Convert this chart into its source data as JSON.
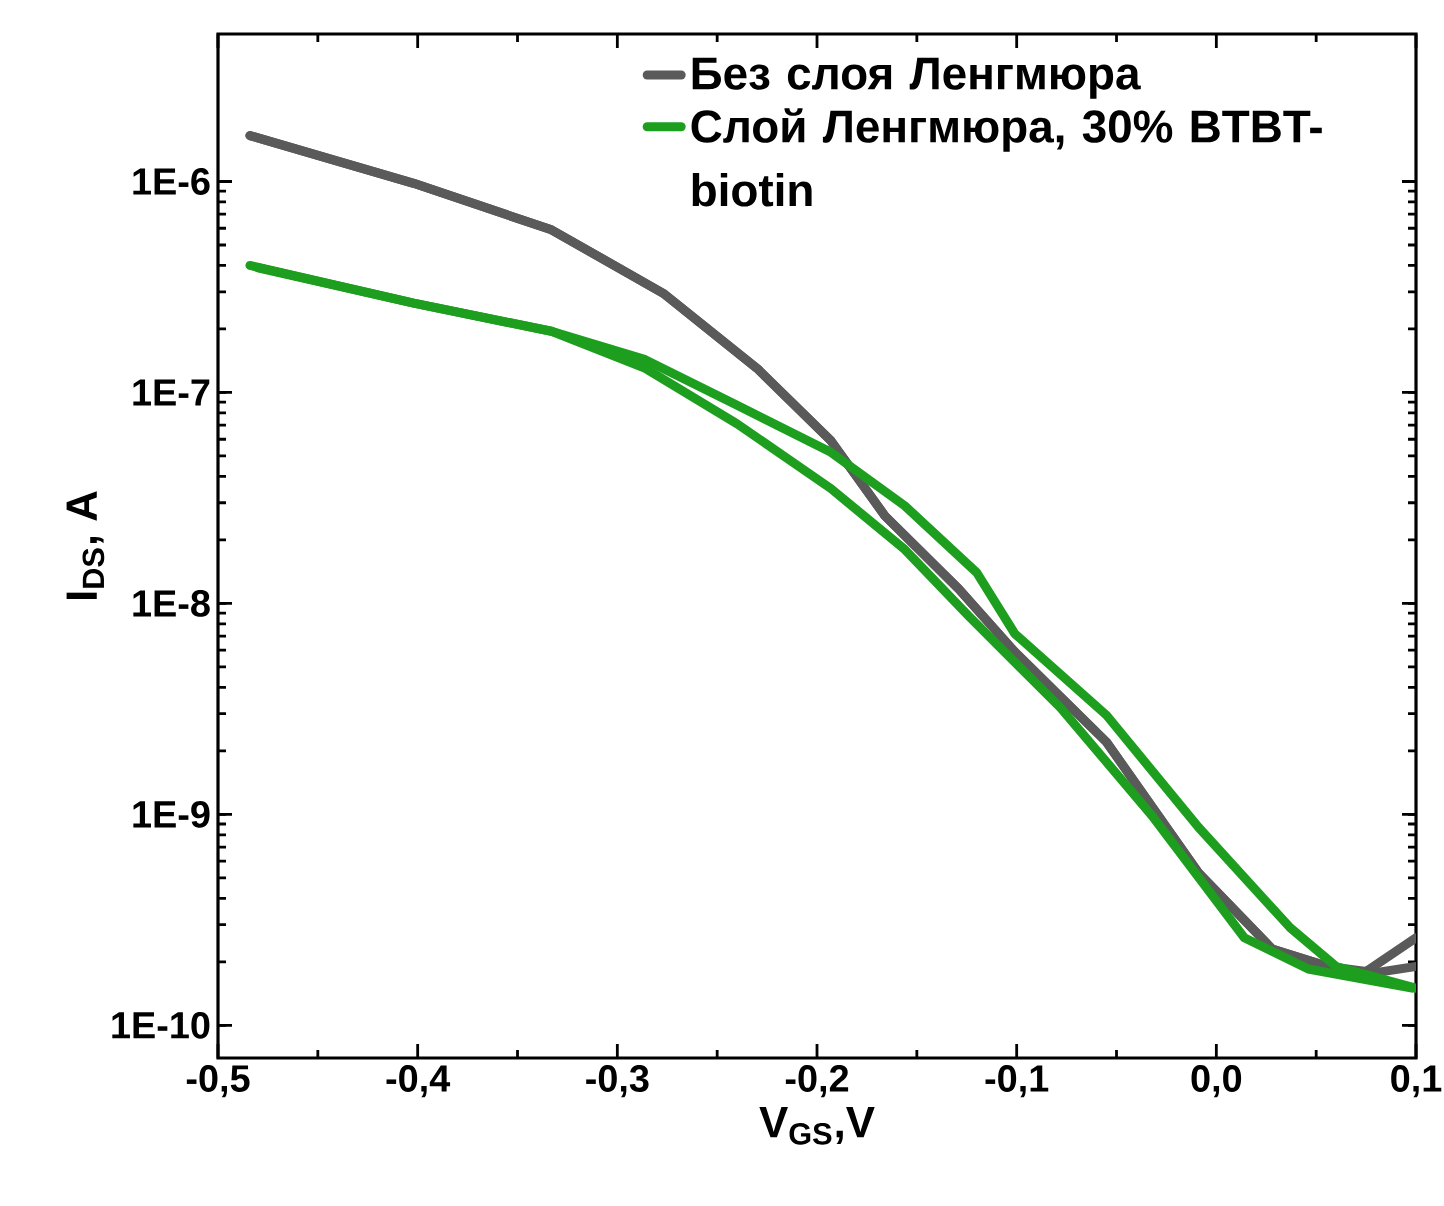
{
  "chart_data": {
    "type": "line",
    "xlabel": "V$_{GS}$,V",
    "ylabel": "I$_{DS}$, A",
    "log": "y",
    "legend": "top right",
    "line_style": "solid",
    "marker": "none",
    "xlim": [
      -0.5,
      0.1
    ],
    "ylim": [
      7e-11,
      5e-06
    ],
    "xticks": [
      {
        "value": -0.5,
        "label": "-0,5"
      },
      {
        "value": -0.4,
        "label": "-0,4"
      },
      {
        "value": -0.3,
        "label": "-0,3"
      },
      {
        "value": -0.2,
        "label": "-0,2"
      },
      {
        "value": -0.1,
        "label": "-0,1"
      },
      {
        "value": 0.0,
        "label": "0,0"
      },
      {
        "value": 0.1,
        "label": "0,1"
      }
    ],
    "yticks": [
      {
        "value": 1e-10,
        "label": "1E-10"
      },
      {
        "value": 1e-09,
        "label": "1E-9"
      },
      {
        "value": 1e-08,
        "label": "1E-8"
      },
      {
        "value": 1e-07,
        "label": "1E-7"
      },
      {
        "value": 1e-06,
        "label": "1E-6"
      }
    ],
    "series": [
      {
        "name": "Без слоя Ленгмюра",
        "color": "#5a5a5a",
        "x": [
          -0.484,
          -0.402,
          -0.333,
          -0.277,
          -0.23,
          -0.193,
          -0.166,
          -0.129,
          -0.101,
          -0.055,
          -0.009,
          0.028,
          0.056,
          0.075,
          0.1
        ],
        "values": [
          1.65e-06,
          9.8e-07,
          5.9e-07,
          2.95e-07,
          1.3e-07,
          5.9e-08,
          2.6e-08,
          1.17e-08,
          5.9e-09,
          2.2e-09,
          5.3e-10,
          2.3e-10,
          1.9e-10,
          1.8e-10,
          2.6e-10
        ]
      },
      {
        "color": "#5a5a5a",
        "x": [
          -0.484,
          -0.402,
          -0.333,
          -0.277,
          -0.23,
          -0.193,
          -0.166,
          -0.129,
          -0.101,
          -0.055,
          -0.009,
          0.028,
          0.056,
          0.075,
          0.1
        ],
        "values": [
          1.65e-06,
          9.8e-07,
          5.9e-07,
          2.95e-07,
          1.3e-07,
          5.9e-08,
          2.6e-08,
          1.17e-08,
          5.9e-09,
          2.2e-09,
          5.3e-10,
          2.3e-10,
          1.9e-10,
          1.75e-10,
          1.9e-10
        ]
      },
      {
        "name": "Слой Ленгмюра, 30% BTBT-biotin",
        "color": "#1e9e1e",
        "x": [
          -0.484,
          -0.402,
          -0.333,
          -0.286,
          -0.24,
          -0.193,
          -0.156,
          -0.12,
          -0.101,
          -0.055,
          -0.009,
          0.037,
          0.06,
          0.1
        ],
        "values": [
          4e-07,
          2.65e-07,
          1.95e-07,
          1.43e-07,
          8.7e-08,
          5.2e-08,
          2.9e-08,
          1.4e-08,
          7.2e-09,
          2.95e-09,
          8.7e-10,
          2.9e-10,
          1.9e-10,
          1.5e-10
        ]
      },
      {
        "color": "#1e9e1e",
        "x": [
          -0.48,
          -0.402,
          -0.333,
          -0.286,
          -0.24,
          -0.193,
          -0.156,
          -0.124,
          -0.078,
          -0.032,
          0.014,
          0.046,
          0.098
        ],
        "values": [
          3.9e-07,
          2.65e-07,
          1.95e-07,
          1.3e-07,
          7.1e-08,
          3.5e-08,
          1.8e-08,
          8.7e-09,
          3.2e-09,
          9.8e-10,
          2.6e-10,
          1.85e-10,
          1.5e-10
        ]
      }
    ]
  }
}
